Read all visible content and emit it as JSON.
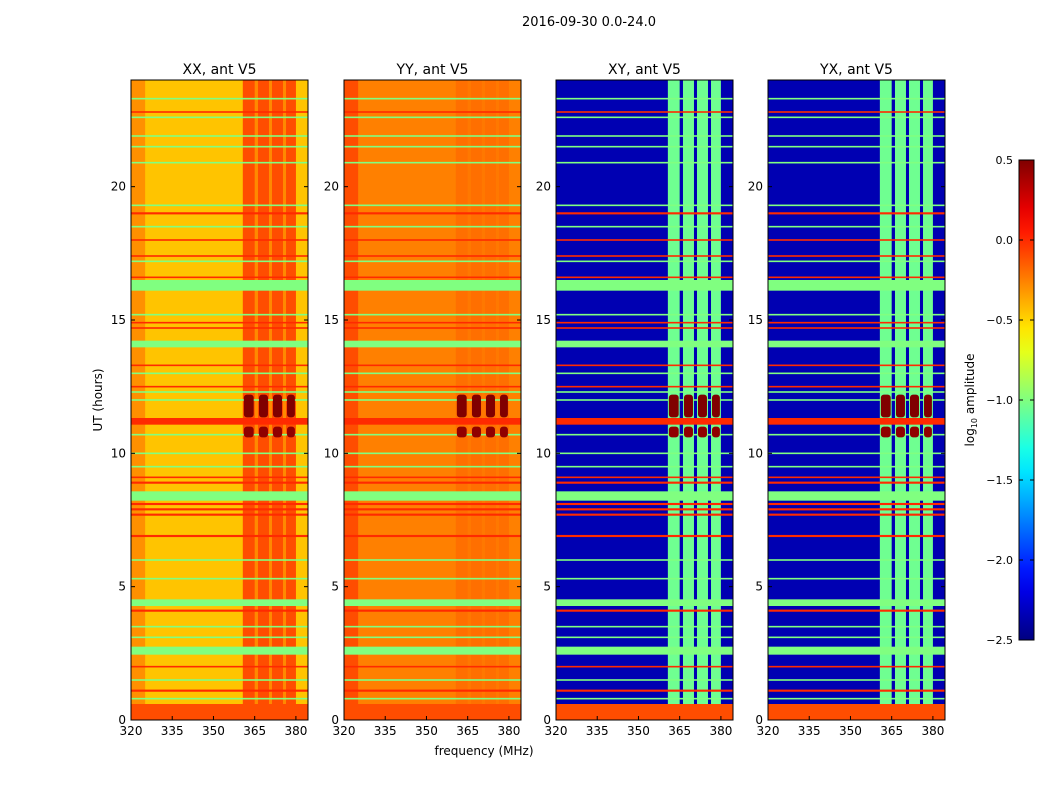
{
  "chart_data": {
    "type": "heatmap",
    "title": "2016-09-30 0.0-24.0",
    "xlabel": "frequency (MHz)",
    "ylabel": "UT (hours)",
    "xlim": [
      320,
      384.4
    ],
    "ylim": [
      0,
      24
    ],
    "xticks": [
      320,
      335,
      350,
      365,
      380
    ],
    "yticks": [
      0,
      5,
      10,
      15,
      20
    ],
    "colorbar": {
      "label_prefix": "log",
      "label_sub": "10",
      "label_suffix": " amplitude",
      "range": [
        -2.5,
        0.5
      ],
      "ticks": [
        "0.5",
        "0.0",
        "−0.5",
        "−1.0",
        "−1.5",
        "−2.0",
        "−2.5"
      ],
      "tick_values": [
        0.5,
        0.0,
        -0.5,
        -1.0,
        -1.5,
        -2.0,
        -2.5
      ],
      "colormap": "jet"
    },
    "channels_mhz": [
      [
        360.7,
        365.0
      ],
      [
        366.2,
        370.2
      ],
      [
        371.3,
        375.3
      ],
      [
        376.4,
        380.0
      ]
    ],
    "panels": [
      {
        "title": "XX, ant V5",
        "base": -0.45,
        "channel": -0.1,
        "show_ylabel": true
      },
      {
        "title": "YY, ant V5",
        "base": -0.25,
        "channel": -0.2,
        "show_ylabel": false
      },
      {
        "title": "XY, ant V5",
        "base": -2.35,
        "channel": -1.05,
        "show_ylabel": false
      },
      {
        "title": "YX, ant V5",
        "base": -2.35,
        "channel": -1.05,
        "show_ylabel": false
      }
    ],
    "rfi_lines": [
      {
        "t": 0.3,
        "dt": 0.6,
        "v": -0.1
      },
      {
        "t": 1.1,
        "dt": 0.08,
        "v": 0.0
      },
      {
        "t": 0.8,
        "dt": 0.06,
        "v": -1.0
      },
      {
        "t": 1.5,
        "dt": 0.06,
        "v": -1.0
      },
      {
        "t": 2.0,
        "dt": 0.06,
        "v": 0.0
      },
      {
        "t": 2.6,
        "dt": 0.3,
        "v": -1.0
      },
      {
        "t": 3.1,
        "dt": 0.06,
        "v": -1.0
      },
      {
        "t": 3.5,
        "dt": 0.06,
        "v": -1.0
      },
      {
        "t": 4.1,
        "dt": 0.08,
        "v": 0.0
      },
      {
        "t": 4.4,
        "dt": 0.25,
        "v": -1.0
      },
      {
        "t": 5.3,
        "dt": 0.06,
        "v": -1.0
      },
      {
        "t": 6.0,
        "dt": 0.06,
        "v": -1.0
      },
      {
        "t": 6.9,
        "dt": 0.08,
        "v": 0.0
      },
      {
        "t": 7.7,
        "dt": 0.08,
        "v": 0.0
      },
      {
        "t": 7.9,
        "dt": 0.08,
        "v": 0.0
      },
      {
        "t": 8.1,
        "dt": 0.08,
        "v": 0.0
      },
      {
        "t": 8.4,
        "dt": 0.35,
        "v": -1.0
      },
      {
        "t": 8.9,
        "dt": 0.08,
        "v": 0.0
      },
      {
        "t": 9.1,
        "dt": 0.06,
        "v": 0.0
      },
      {
        "t": 9.5,
        "dt": 0.06,
        "v": -1.0
      },
      {
        "t": 10.0,
        "dt": 0.06,
        "v": -1.0
      },
      {
        "t": 10.7,
        "dt": 0.06,
        "v": -1.0
      },
      {
        "t": 11.2,
        "dt": 0.25,
        "v": 0.0
      },
      {
        "t": 12.0,
        "dt": 0.06,
        "v": -1.0
      },
      {
        "t": 12.3,
        "dt": 0.06,
        "v": -1.0
      },
      {
        "t": 12.5,
        "dt": 0.06,
        "v": 0.0
      },
      {
        "t": 13.0,
        "dt": 0.06,
        "v": -1.0
      },
      {
        "t": 13.3,
        "dt": 0.06,
        "v": 0.0
      },
      {
        "t": 14.1,
        "dt": 0.25,
        "v": -1.0
      },
      {
        "t": 14.7,
        "dt": 0.06,
        "v": 0.0
      },
      {
        "t": 14.9,
        "dt": 0.06,
        "v": 0.0
      },
      {
        "t": 15.2,
        "dt": 0.06,
        "v": -1.0
      },
      {
        "t": 16.3,
        "dt": 0.4,
        "v": -1.0
      },
      {
        "t": 16.6,
        "dt": 0.06,
        "v": 0.0
      },
      {
        "t": 17.2,
        "dt": 0.06,
        "v": -1.0
      },
      {
        "t": 17.4,
        "dt": 0.06,
        "v": 0.0
      },
      {
        "t": 18.0,
        "dt": 0.06,
        "v": 0.0
      },
      {
        "t": 18.5,
        "dt": 0.06,
        "v": -1.0
      },
      {
        "t": 19.0,
        "dt": 0.08,
        "v": 0.0
      },
      {
        "t": 19.3,
        "dt": 0.06,
        "v": -1.0
      },
      {
        "t": 20.9,
        "dt": 0.06,
        "v": -1.0
      },
      {
        "t": 21.5,
        "dt": 0.06,
        "v": -1.0
      },
      {
        "t": 21.9,
        "dt": 0.06,
        "v": -1.0
      },
      {
        "t": 22.6,
        "dt": 0.06,
        "v": -1.0
      },
      {
        "t": 22.8,
        "dt": 0.06,
        "v": 0.0
      },
      {
        "t": 23.3,
        "dt": 0.06,
        "v": -1.0
      }
    ],
    "bright_blocks": [
      {
        "t0": 11.35,
        "t1": 12.2,
        "v": 0.5
      },
      {
        "t0": 10.6,
        "t1": 11.0,
        "v": 0.45
      }
    ]
  }
}
